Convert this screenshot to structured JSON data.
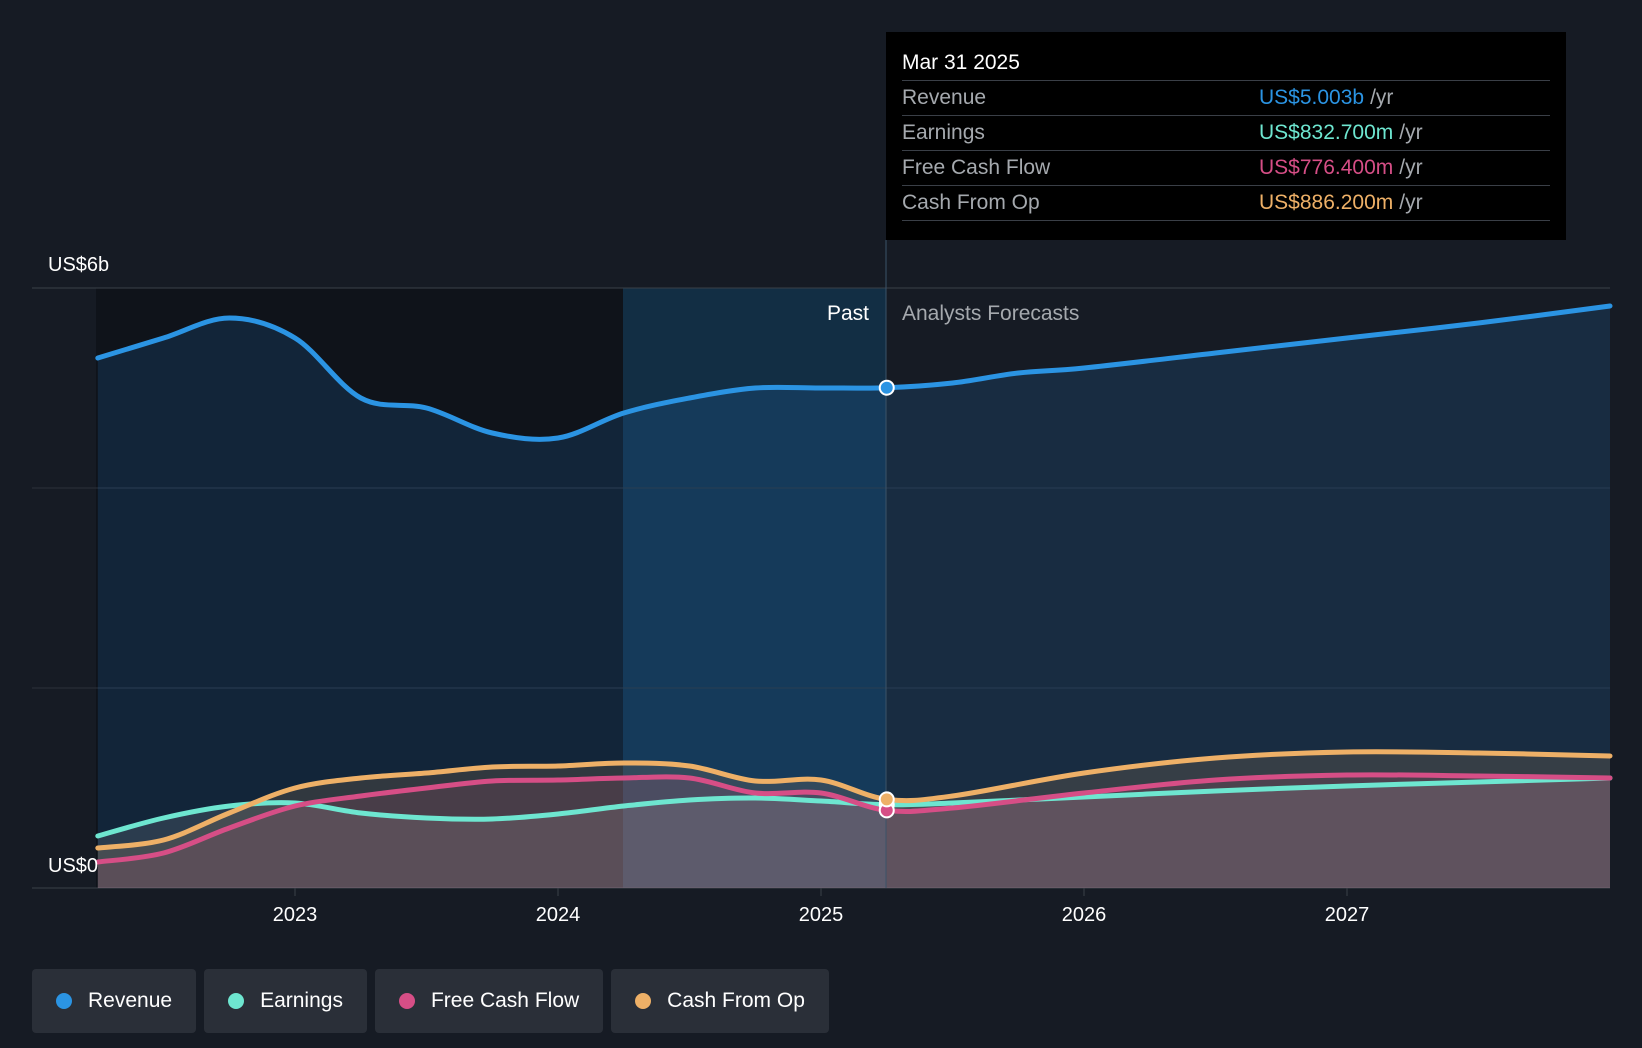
{
  "tooltip": {
    "date": "Mar 31 2025",
    "rows": [
      {
        "label": "Revenue",
        "value": "US$5.003b",
        "unit": "/yr",
        "color": "#2b94e3"
      },
      {
        "label": "Earnings",
        "value": "US$832.700m",
        "unit": "/yr",
        "color": "#6ee6d0"
      },
      {
        "label": "Free Cash Flow",
        "value": "US$776.400m",
        "unit": "/yr",
        "color": "#d64e86"
      },
      {
        "label": "Cash From Op",
        "value": "US$886.200m",
        "unit": "/yr",
        "color": "#eeb067"
      }
    ]
  },
  "labels": {
    "past": "Past",
    "forecast": "Analysts Forecasts"
  },
  "legend": [
    {
      "label": "Revenue",
      "color": "#2b94e3"
    },
    {
      "label": "Earnings",
      "color": "#6ee6d0"
    },
    {
      "label": "Free Cash Flow",
      "color": "#d64e86"
    },
    {
      "label": "Cash From Op",
      "color": "#eeb067"
    }
  ],
  "chart_data": {
    "type": "line",
    "title": "",
    "xlabel": "",
    "ylabel": "",
    "ylim": [
      0,
      6
    ],
    "y_unit": "billions USD",
    "y_tick_labels": [
      {
        "value": 6,
        "label": "US$6b"
      },
      {
        "value": 0,
        "label": "US$0"
      }
    ],
    "x_ticks": [
      2023,
      2024,
      2025,
      2026,
      2027
    ],
    "xlim": [
      2022.0,
      2028.0
    ],
    "past_region_start": 2024.25,
    "divider_x": 2025.25,
    "grid": true,
    "legend_position": "bottom",
    "series": [
      {
        "name": "Revenue",
        "color": "#2b94e3",
        "x": [
          2022.25,
          2022.5,
          2022.75,
          2023.0,
          2023.25,
          2023.5,
          2023.75,
          2024.0,
          2024.25,
          2024.5,
          2024.75,
          2025.0,
          2025.25,
          2025.5,
          2025.75,
          2026.0,
          2026.5,
          2027.0,
          2027.5,
          2028.0
        ],
        "y": [
          5.3,
          5.5,
          5.7,
          5.5,
          4.9,
          4.8,
          4.55,
          4.5,
          4.75,
          4.9,
          5.0,
          5.0,
          5.003,
          5.05,
          5.15,
          5.2,
          5.35,
          5.5,
          5.65,
          5.82
        ]
      },
      {
        "name": "Earnings",
        "color": "#6ee6d0",
        "x": [
          2022.25,
          2022.5,
          2022.75,
          2023.0,
          2023.25,
          2023.5,
          2023.75,
          2024.0,
          2024.25,
          2024.5,
          2024.75,
          2025.0,
          2025.25,
          2025.5,
          2026.0,
          2026.5,
          2027.0,
          2027.5,
          2028.0
        ],
        "y": [
          0.52,
          0.7,
          0.82,
          0.85,
          0.75,
          0.7,
          0.69,
          0.74,
          0.82,
          0.88,
          0.9,
          0.87,
          0.8327,
          0.85,
          0.91,
          0.97,
          1.02,
          1.06,
          1.1
        ]
      },
      {
        "name": "Free Cash Flow",
        "color": "#d64e86",
        "x": [
          2022.25,
          2022.5,
          2022.75,
          2023.0,
          2023.25,
          2023.5,
          2023.75,
          2024.0,
          2024.25,
          2024.5,
          2024.75,
          2025.0,
          2025.25,
          2025.5,
          2026.0,
          2026.5,
          2027.0,
          2027.5,
          2028.0
        ],
        "y": [
          0.26,
          0.35,
          0.6,
          0.82,
          0.92,
          1.0,
          1.07,
          1.08,
          1.1,
          1.1,
          0.95,
          0.95,
          0.7764,
          0.8,
          0.95,
          1.08,
          1.13,
          1.12,
          1.1
        ]
      },
      {
        "name": "Cash From Op",
        "color": "#eeb067",
        "x": [
          2022.25,
          2022.5,
          2022.75,
          2023.0,
          2023.25,
          2023.5,
          2023.75,
          2024.0,
          2024.25,
          2024.5,
          2024.75,
          2025.0,
          2025.25,
          2025.5,
          2026.0,
          2026.5,
          2027.0,
          2027.5,
          2028.0
        ],
        "y": [
          0.4,
          0.48,
          0.75,
          1.0,
          1.1,
          1.15,
          1.21,
          1.22,
          1.25,
          1.22,
          1.07,
          1.08,
          0.8862,
          0.92,
          1.15,
          1.3,
          1.36,
          1.35,
          1.32
        ]
      }
    ]
  }
}
